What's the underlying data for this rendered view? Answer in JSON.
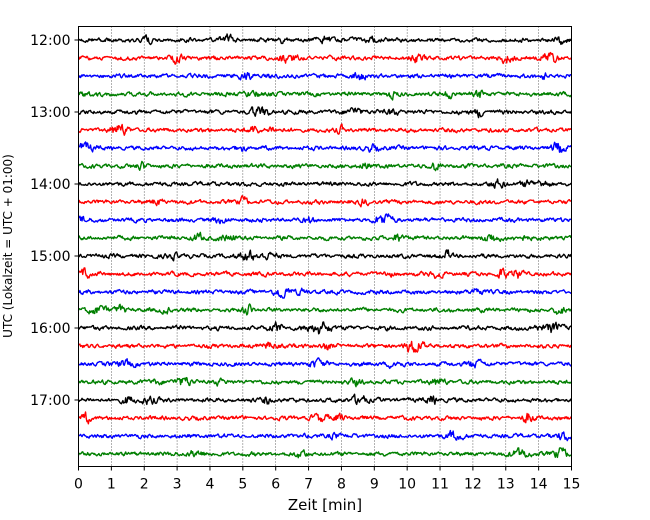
{
  "chart_data": {
    "type": "line",
    "title": "",
    "xlabel": "Zeit  [min]",
    "ylabel": "UTC (Lokalzeit = UTC + 01:00)",
    "xlim": [
      0,
      15
    ],
    "x_ticks": [
      0,
      1,
      2,
      3,
      4,
      5,
      6,
      7,
      8,
      9,
      10,
      11,
      12,
      13,
      14,
      15
    ],
    "y_tick_labels": [
      "12:00",
      "13:00",
      "14:00",
      "15:00",
      "16:00",
      "17:00"
    ],
    "grid": "vertical dotted",
    "trace_interval_minutes": 15,
    "trace_colors": [
      "#000000",
      "#ff0000",
      "#0000ff",
      "#007f00"
    ],
    "traces": [
      {
        "start": "12:00",
        "color": "#000000"
      },
      {
        "start": "12:15",
        "color": "#ff0000"
      },
      {
        "start": "12:30",
        "color": "#0000ff"
      },
      {
        "start": "12:45",
        "color": "#007f00"
      },
      {
        "start": "13:00",
        "color": "#000000"
      },
      {
        "start": "13:15",
        "color": "#ff0000"
      },
      {
        "start": "13:30",
        "color": "#0000ff"
      },
      {
        "start": "13:45",
        "color": "#007f00"
      },
      {
        "start": "14:00",
        "color": "#000000"
      },
      {
        "start": "14:15",
        "color": "#ff0000"
      },
      {
        "start": "14:30",
        "color": "#0000ff"
      },
      {
        "start": "14:45",
        "color": "#007f00"
      },
      {
        "start": "15:00",
        "color": "#000000"
      },
      {
        "start": "15:15",
        "color": "#ff0000"
      },
      {
        "start": "15:30",
        "color": "#0000ff"
      },
      {
        "start": "15:45",
        "color": "#007f00"
      },
      {
        "start": "16:00",
        "color": "#000000"
      },
      {
        "start": "16:15",
        "color": "#ff0000"
      },
      {
        "start": "16:30",
        "color": "#0000ff"
      },
      {
        "start": "16:45",
        "color": "#007f00"
      },
      {
        "start": "17:00",
        "color": "#000000"
      },
      {
        "start": "17:15",
        "color": "#ff0000"
      },
      {
        "start": "17:30",
        "color": "#0000ff"
      },
      {
        "start": "17:45",
        "color": "#007f00"
      }
    ]
  }
}
